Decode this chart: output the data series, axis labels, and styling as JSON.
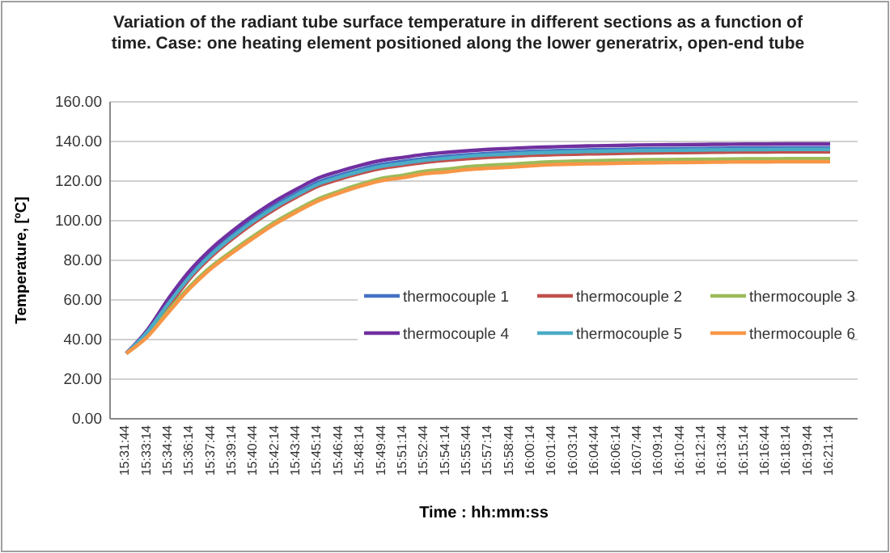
{
  "chart_data": {
    "type": "line",
    "title": "Variation of the radiant tube surface temperature in different sections as a function of time. Case: one heating element positioned along the lower generatrix, open-end tube",
    "xlabel": "Time :  hh:mm:ss",
    "ylabel": "Temperature, [ºC]",
    "categories": [
      "15:31:44",
      "15:33:14",
      "15:34:44",
      "15:36:14",
      "15:37:44",
      "15:39:14",
      "15:40:44",
      "15:42:14",
      "15:43:44",
      "15:45:14",
      "15:46:44",
      "15:48:14",
      "15:49:44",
      "15:51:14",
      "15:52:44",
      "15:54:14",
      "15:55:44",
      "15:57:14",
      "15:58:44",
      "16:00:14",
      "16:01:44",
      "16:03:14",
      "16:04:44",
      "16:06:14",
      "16:07:44",
      "16:09:14",
      "16:10:44",
      "16:12:14",
      "16:13:44",
      "16:15:14",
      "16:16:44",
      "16:18:14",
      "16:19:44",
      "16:21:14"
    ],
    "series": [
      {
        "name": "thermocouple 1",
        "color": "#4472c4",
        "values": [
          33,
          44,
          59,
          73,
          84,
          93,
          101,
          108,
          114,
          119.5,
          123,
          126,
          128.5,
          130,
          131.5,
          132.5,
          133.3,
          134,
          134.5,
          135,
          135.3,
          135.6,
          135.8,
          136,
          136.2,
          136.3,
          136.4,
          136.5,
          136.6,
          136.7,
          136.7,
          136.8,
          136.8,
          136.8
        ]
      },
      {
        "name": "thermocouple 2",
        "color": "#c0504d",
        "values": [
          33,
          43,
          57,
          71,
          82,
          91,
          99,
          106,
          112,
          117.5,
          121,
          124,
          126.5,
          128,
          129.5,
          130.5,
          131.3,
          132,
          132.5,
          133,
          133.3,
          133.6,
          133.8,
          134,
          134.2,
          134.3,
          134.4,
          134.5,
          134.6,
          134.7,
          134.7,
          134.8,
          134.8,
          134.8
        ]
      },
      {
        "name": "thermocouple 3",
        "color": "#9bbb59",
        "values": [
          33,
          42,
          55,
          67,
          77,
          85,
          92.5,
          99.5,
          105.5,
          111,
          115,
          118.5,
          121.5,
          123,
          125,
          126,
          127.3,
          128,
          128.5,
          129.2,
          129.8,
          130.1,
          130.3,
          130.5,
          130.7,
          130.8,
          130.9,
          131,
          131.1,
          131.2,
          131.2,
          131.3,
          131.3,
          131.3
        ]
      },
      {
        "name": "thermocouple 4",
        "color": "#7030a0",
        "values": [
          33,
          45,
          61,
          75,
          86,
          95,
          103,
          110,
          116,
          121.5,
          125,
          128,
          130.5,
          132,
          133.5,
          134.5,
          135.3,
          136,
          136.5,
          137,
          137.3,
          137.6,
          137.8,
          138,
          138.2,
          138.3,
          138.4,
          138.5,
          138.6,
          138.7,
          138.7,
          138.8,
          138.8,
          138.8
        ]
      },
      {
        "name": "thermocouple 5",
        "color": "#4bacc6",
        "values": [
          33,
          44,
          58.5,
          72,
          83,
          92,
          100,
          107,
          113,
          118.5,
          122,
          125,
          127.5,
          129,
          130.5,
          131.5,
          132.5,
          133.2,
          133.7,
          134.2,
          134.5,
          134.8,
          135,
          135.2,
          135.4,
          135.5,
          135.6,
          135.7,
          135.8,
          135.9,
          135.9,
          136,
          136,
          136
        ]
      },
      {
        "name": "thermocouple 6",
        "color": "#f79646",
        "values": [
          33,
          41.5,
          54,
          66,
          76,
          84,
          91.5,
          98.5,
          104.5,
          110,
          114,
          117.5,
          120.3,
          121.8,
          123.7,
          124.6,
          125.8,
          126.5,
          127,
          127.7,
          128.3,
          128.6,
          128.8,
          129,
          129.2,
          129.3,
          129.4,
          129.5,
          129.6,
          129.7,
          129.7,
          129.8,
          129.8,
          129.8
        ]
      }
    ],
    "ylim": [
      0,
      160
    ],
    "yticks": [
      {
        "value": 0,
        "label": "0.00"
      },
      {
        "value": 20,
        "label": "20.00"
      },
      {
        "value": 40,
        "label": "40.00"
      },
      {
        "value": 60,
        "label": "60.00"
      },
      {
        "value": 80,
        "label": "80.00"
      },
      {
        "value": 100,
        "label": "100.00"
      },
      {
        "value": 120,
        "label": "120.00"
      },
      {
        "value": 140,
        "label": "140.00"
      },
      {
        "value": 160,
        "label": "160.00"
      }
    ],
    "grid": "y",
    "legend": "bottom right"
  }
}
